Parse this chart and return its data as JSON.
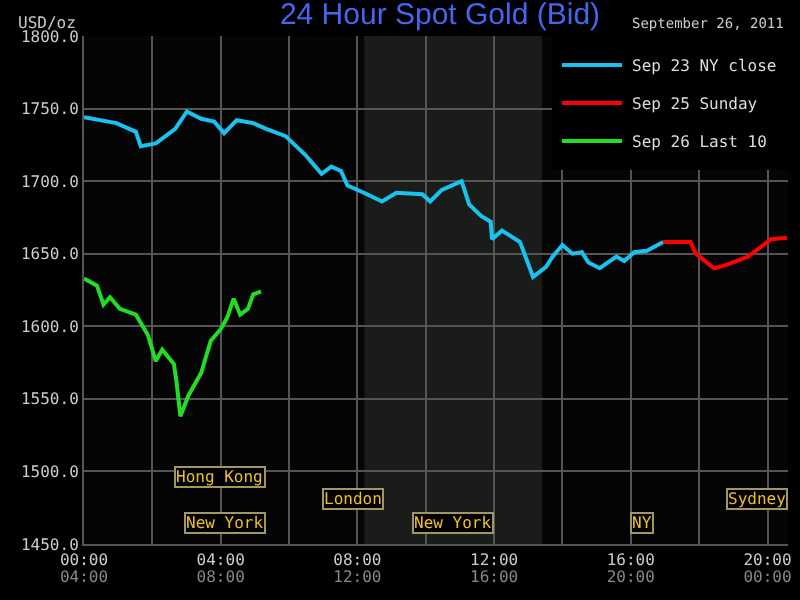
{
  "chart_data": {
    "type": "line",
    "title": "24 Hour Spot Gold (Bid)",
    "subtitle": "September 26, 2011",
    "ylabel": "USD/oz",
    "xlim": [
      0,
      20.6
    ],
    "xticks": [
      {
        "value": 0,
        "label": "00:00"
      },
      {
        "value": 2,
        "label": null
      },
      {
        "value": 4,
        "label": "04:00"
      },
      {
        "value": 6,
        "label": null
      },
      {
        "value": 8,
        "label": "08:00"
      },
      {
        "value": 10,
        "label": null
      },
      {
        "value": 12,
        "label": "12:00"
      },
      {
        "value": 14,
        "label": null
      },
      {
        "value": 16,
        "label": "16:00"
      },
      {
        "value": 18,
        "label": null
      },
      {
        "value": 20,
        "label": "20:00"
      }
    ],
    "x2lim": [
      4,
      24.6
    ],
    "x2ticks": [
      {
        "value": 4,
        "label": "04:00"
      },
      {
        "value": 8,
        "label": "08:00"
      },
      {
        "value": 12,
        "label": "12:00"
      },
      {
        "value": 16,
        "label": "16:00"
      },
      {
        "value": 20,
        "label": "20:00"
      },
      {
        "value": 24,
        "label": "00:00"
      }
    ],
    "ylim": [
      1450,
      1800
    ],
    "yticks": [
      {
        "value": 1450,
        "label": "1450.0"
      },
      {
        "value": 1500,
        "label": "1500.0"
      },
      {
        "value": 1550,
        "label": "1550.0"
      },
      {
        "value": 1600,
        "label": "1600.0"
      },
      {
        "value": 1650,
        "label": "1650.0"
      },
      {
        "value": 1700,
        "label": "1700.0"
      },
      {
        "value": 1750,
        "label": "1750.0"
      },
      {
        "value": 1800,
        "label": "1800.0"
      }
    ],
    "grid": true,
    "legend": "top right",
    "bands": [
      {
        "axis": "x",
        "from": 8.2,
        "to": 13.4,
        "color": "#1a1c1a"
      }
    ],
    "annotations": [
      "Hong Kong",
      "London",
      "New York",
      "New York",
      "NY",
      "Sydney"
    ],
    "series": [
      {
        "name": "Sep 23 NY close",
        "color": "#19c3f0",
        "x": [
          0,
          0.95,
          1.52,
          1.66,
          2.1,
          2.67,
          3.01,
          3.43,
          3.81,
          4.1,
          4.47,
          4.95,
          5.33,
          5.9,
          6.48,
          6.95,
          7.24,
          7.52,
          7.71,
          8.19,
          8.72,
          9.14,
          9.9,
          10.13,
          10.47,
          11.05,
          11.27,
          11.62,
          11.9,
          11.94,
          12.23,
          12.76,
          13.14,
          13.52,
          13.71,
          14.0,
          14.29,
          14.57,
          14.76,
          15.09,
          15.58,
          15.81,
          16.1,
          16.47,
          16.95
        ],
        "values": [
          1744,
          1740,
          1734,
          1724,
          1726,
          1736,
          1748,
          1743,
          1741,
          1733,
          1742,
          1740,
          1736,
          1731,
          1718,
          1705,
          1710,
          1707,
          1697,
          1692,
          1686,
          1692,
          1691,
          1686,
          1694,
          1700,
          1684,
          1676,
          1672,
          1660,
          1666,
          1658,
          1634,
          1641,
          1648,
          1656,
          1650,
          1651,
          1644,
          1640,
          1648,
          1645,
          1651,
          1652,
          1658
        ]
      },
      {
        "name": "Sep 25 Sunday",
        "color": "#ff0000",
        "x": [
          16.95,
          17.75,
          17.9,
          18.44,
          18.76,
          19.43,
          20.1,
          20.57
        ],
        "values": [
          1658,
          1658,
          1650,
          1640,
          1642,
          1648,
          1660,
          1661
        ]
      },
      {
        "name": "Sep 26 Last 10",
        "color": "#22dd22",
        "x": [
          0,
          0.38,
          0.57,
          0.76,
          1.05,
          1.52,
          1.87,
          2.1,
          2.29,
          2.63,
          2.7,
          2.82,
          3.05,
          3.43,
          3.71,
          4.0,
          4.19,
          4.38,
          4.57,
          4.8,
          4.95,
          5.18
        ],
        "values": [
          1633,
          1628,
          1615,
          1620,
          1612,
          1608,
          1594,
          1576,
          1584,
          1574,
          1563,
          1538,
          1552,
          1568,
          1590,
          1598,
          1606,
          1619,
          1608,
          1612,
          1622,
          1624
        ]
      }
    ]
  }
}
